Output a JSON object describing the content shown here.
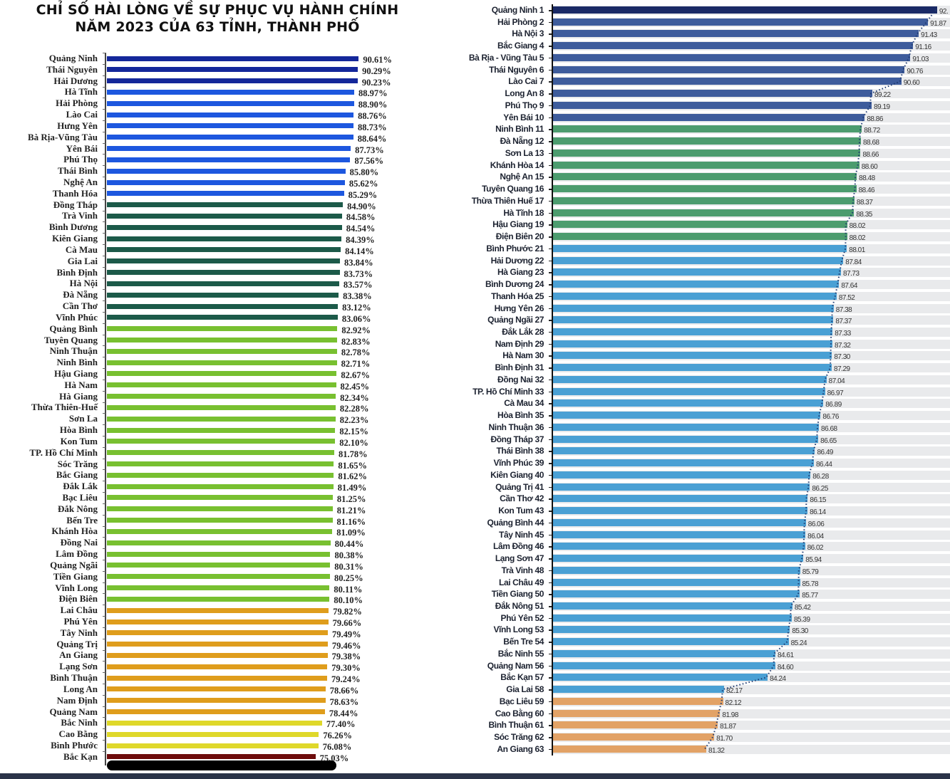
{
  "chart_data": [
    {
      "type": "bar",
      "orientation": "horizontal",
      "title": "CHỈ SỐ HÀI LÒNG VỀ SỰ PHỤC VỤ HÀNH CHÍNH NĂM 2023 CỦA 63 TỈNH, THÀNH PHỐ",
      "title_lines": [
        "CHỈ SỐ HÀI LÒNG VỀ SỰ PHỤC VỤ HÀNH CHÍNH",
        "NĂM 2023 CỦA 63 TỈNH, THÀNH PHỐ"
      ],
      "xlim": [
        0,
        100
      ],
      "unit": "%",
      "grid": false,
      "categories": [
        "Quảng Ninh",
        "Thái Nguyên",
        "Hải Dương",
        "Hà Tĩnh",
        "Hải Phòng",
        "Lào Cai",
        "Hưng Yên",
        "Bà Rịa-Vũng Tàu",
        "Yên Bái",
        "Phú Thọ",
        "Thái Bình",
        "Nghệ An",
        "Thanh Hóa",
        "Đồng Tháp",
        "Trà Vinh",
        "Bình Dương",
        "Kiên Giang",
        "Cà Mau",
        "Gia Lai",
        "Bình Định",
        "Hà Nội",
        "Đà Nẵng",
        "Cần Thơ",
        "Vĩnh Phúc",
        "Quảng Bình",
        "Tuyên Quang",
        "Ninh Thuận",
        "Ninh Bình",
        "Hậu Giang",
        "Hà Nam",
        "Hà Giang",
        "Thừa Thiên-Huế",
        "Sơn La",
        "Hòa Bình",
        "Kon Tum",
        "TP. Hồ Chí Minh",
        "Sóc Trăng",
        "Bắc Giang",
        "Đắk Lắk",
        "Bạc Liêu",
        "Đắk Nông",
        "Bến Tre",
        "Khánh Hòa",
        "Đồng Nai",
        "Lâm Đồng",
        "Quảng Ngãi",
        "Tiền Giang",
        "Vĩnh Long",
        "Điện Biên",
        "Lai Châu",
        "Phú Yên",
        "Tây Ninh",
        "Quảng Trị",
        "An Giang",
        "Lạng Sơn",
        "Bình Thuận",
        "Long An",
        "Nam Định",
        "Quảng Nam",
        "Bắc Ninh",
        "Cao Bằng",
        "Bình Phước",
        "Bắc Kạn"
      ],
      "values": [
        90.61,
        90.29,
        90.23,
        88.97,
        88.9,
        88.76,
        88.73,
        88.64,
        87.73,
        87.56,
        85.8,
        85.62,
        85.29,
        84.9,
        84.58,
        84.54,
        84.39,
        84.14,
        83.84,
        83.73,
        83.57,
        83.38,
        83.12,
        83.06,
        82.92,
        82.83,
        82.78,
        82.71,
        82.67,
        82.45,
        82.34,
        82.28,
        82.23,
        82.15,
        82.1,
        81.78,
        81.65,
        81.62,
        81.49,
        81.25,
        81.21,
        81.16,
        81.09,
        80.44,
        80.38,
        80.31,
        80.25,
        80.11,
        80.1,
        79.82,
        79.66,
        79.49,
        79.46,
        79.38,
        79.3,
        79.24,
        78.66,
        78.63,
        78.44,
        77.4,
        76.26,
        76.08,
        75.03
      ],
      "color_groups": [
        {
          "count": 3,
          "color": "#14279a"
        },
        {
          "count": 10,
          "color": "#1d57df"
        },
        {
          "count": 11,
          "color": "#1c5a49"
        },
        {
          "count": 25,
          "color": "#78c030"
        },
        {
          "count": 10,
          "color": "#df9d1c"
        },
        {
          "count": 3,
          "color": "#dfd82a"
        },
        {
          "count": 1,
          "color": "#6e0c0c"
        }
      ]
    },
    {
      "type": "bar",
      "orientation": "horizontal",
      "xlim": [
        74,
        93
      ],
      "grid": false,
      "trendline": "dotted",
      "categories": [
        "Quảng Ninh 1",
        "Hải Phòng 2",
        "Hà Nội 3",
        "Bắc Giang 4",
        "Bà Rịa - Vũng Tàu 5",
        "Thái Nguyên 6",
        "Lào Cai 7",
        "Long An 8",
        "Phú Thọ 9",
        "Yên Bái 10",
        "Ninh Bình 11",
        "Đà Nẵng 12",
        "Sơn La 13",
        "Khánh Hòa 14",
        "Nghệ An 15",
        "Tuyên Quang 16",
        "Thừa Thiên Huế 17",
        "Hà Tĩnh 18",
        "Hậu Giang 19",
        "Điện Biên 20",
        "Bình Phước 21",
        "Hải Dương 22",
        "Hà Giang 23",
        "Bình Dương 24",
        "Thanh Hóa 25",
        "Hưng Yên 26",
        "Quảng Ngãi 27",
        "Đắk Lắk 28",
        "Nam Định 29",
        "Hà Nam 30",
        "Bình Định 31",
        "Đồng Nai 32",
        "TP. Hồ Chí Minh 33",
        "Cà Mau 34",
        "Hòa Bình 35",
        "Ninh Thuận 36",
        "Đồng Tháp 37",
        "Thái Bình 38",
        "Vĩnh Phúc 39",
        "Kiên Giang 40",
        "Quảng Trị 41",
        "Cần Thơ 42",
        "Kon Tum 43",
        "Quảng Bình 44",
        "Tây Ninh 45",
        "Lâm Đồng 46",
        "Lạng Sơn 47",
        "Trà Vinh 48",
        "Lai Châu 49",
        "Tiền Giang 50",
        "Đắk Nông 51",
        "Phú Yên 52",
        "Vĩnh Long 53",
        "Bến Tre 54",
        "Bắc Ninh 55",
        "Quảng Nam 56",
        "Bắc Kạn 57",
        "Gia Lai 58",
        "Bạc Liêu 59",
        "Cao Bằng 60",
        "Bình Thuận 61",
        "Sóc Trăng 62",
        "An Giang 63"
      ],
      "values": [
        92.3,
        91.87,
        91.43,
        91.16,
        91.03,
        90.76,
        90.6,
        89.22,
        89.19,
        88.86,
        88.72,
        88.68,
        88.66,
        88.6,
        88.48,
        88.46,
        88.37,
        88.35,
        88.02,
        88.02,
        88.01,
        87.84,
        87.73,
        87.64,
        87.52,
        87.38,
        87.37,
        87.33,
        87.32,
        87.3,
        87.29,
        87.04,
        86.97,
        86.89,
        86.76,
        86.68,
        86.65,
        86.49,
        86.44,
        86.28,
        86.25,
        86.15,
        86.14,
        86.06,
        86.04,
        86.02,
        85.94,
        85.79,
        85.78,
        85.77,
        85.42,
        85.39,
        85.3,
        85.24,
        84.61,
        84.6,
        84.24,
        82.17,
        82.12,
        81.98,
        81.87,
        81.7,
        81.32
      ],
      "data_labels": [
        "92.",
        "91.87",
        "91.43",
        "91.16",
        "91.03",
        "90.76",
        "90.60",
        "89.22",
        "89.19",
        "88.86",
        "88.72",
        "88.68",
        "88.66",
        "88.60",
        "88.48",
        "88.46",
        "88.37",
        "88.35",
        "88.02",
        "88.02",
        "88.01",
        "87.84",
        "87.73",
        "87.64",
        "87.52",
        "87.38",
        "87.37",
        "87.33",
        "87.32",
        "87.30",
        "87.29",
        "87.04",
        "86.97",
        "86.89",
        "86.76",
        "86.68",
        "86.65",
        "86.49",
        "86.44",
        "86.28",
        "86.25",
        "86.15",
        "86.14",
        "86.06",
        "86.04",
        "86.02",
        "85.94",
        "85.79",
        "85.78",
        "85.77",
        "85.42",
        "85.39",
        "85.30",
        "85.24",
        "84.61",
        "84.60",
        "84.24",
        "82.17",
        "82.12",
        "81.98",
        "81.87",
        "81.70",
        "81.32"
      ],
      "color_groups": [
        {
          "count": 1,
          "color": "#1a2a66"
        },
        {
          "count": 9,
          "color": "#3e5c9c"
        },
        {
          "count": 10,
          "color": "#4c9c6e"
        },
        {
          "count": 38,
          "color": "#4aa0d4"
        },
        {
          "count": 5,
          "color": "#e2a266"
        }
      ]
    }
  ]
}
